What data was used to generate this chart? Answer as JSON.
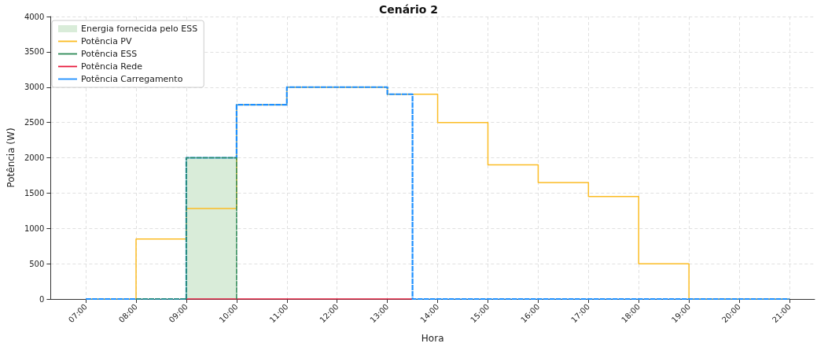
{
  "chart_data": {
    "type": "step",
    "title": "Cenário 2",
    "xlabel": "Hora",
    "ylabel": "Potência (W)",
    "x": [
      7,
      8,
      9,
      10,
      11,
      12,
      13,
      13.5,
      14,
      15,
      16,
      17,
      18,
      19,
      20,
      21
    ],
    "series": [
      {
        "name": "Energia fornecida pelo ESS",
        "type": "area",
        "color": "#d9ecd9",
        "x": [
          9,
          10
        ],
        "values": [
          2000,
          2000
        ]
      },
      {
        "name": "Potência PV",
        "color": "#fbbc24",
        "line_style": "solid",
        "values": [
          0,
          850,
          1280,
          2750,
          3000,
          3000,
          2900,
          2900,
          2500,
          1900,
          1650,
          1450,
          500,
          0,
          0,
          0
        ]
      },
      {
        "name": "Potência ESS",
        "color": "#2e8b57",
        "line_style": "dashed",
        "x": [
          8,
          9,
          10
        ],
        "values": [
          0,
          2000,
          0
        ]
      },
      {
        "name": "Potência Rede",
        "color": "#e8193c",
        "line_style": "solid",
        "x": [
          9,
          13.5
        ],
        "values": [
          0,
          0
        ]
      },
      {
        "name": "Potência Carregamento",
        "color": "#1e90ff",
        "line_style": "dashed",
        "values": [
          0,
          0,
          2000,
          2750,
          3000,
          3000,
          2900,
          0,
          0,
          0,
          0,
          0,
          0,
          0,
          0,
          0
        ]
      }
    ],
    "xlim": [
      6.3,
      21.5
    ],
    "xticks": [
      {
        "value": 7,
        "label": "07:00"
      },
      {
        "value": 8,
        "label": "08:00"
      },
      {
        "value": 9,
        "label": "09:00"
      },
      {
        "value": 10,
        "label": "10:00"
      },
      {
        "value": 11,
        "label": "11:00"
      },
      {
        "value": 12,
        "label": "12:00"
      },
      {
        "value": 13,
        "label": "13:00"
      },
      {
        "value": 14,
        "label": "14:00"
      },
      {
        "value": 15,
        "label": "15:00"
      },
      {
        "value": 16,
        "label": "16:00"
      },
      {
        "value": 17,
        "label": "17:00"
      },
      {
        "value": 18,
        "label": "18:00"
      },
      {
        "value": 19,
        "label": "19:00"
      },
      {
        "value": 20,
        "label": "20:00"
      },
      {
        "value": 21,
        "label": "21:00"
      }
    ],
    "ylim": [
      0,
      4000
    ],
    "yticks": [
      0,
      500,
      1000,
      1500,
      2000,
      2500,
      3000,
      3500,
      4000
    ],
    "grid": true,
    "legend": "top left",
    "marker": "none"
  }
}
